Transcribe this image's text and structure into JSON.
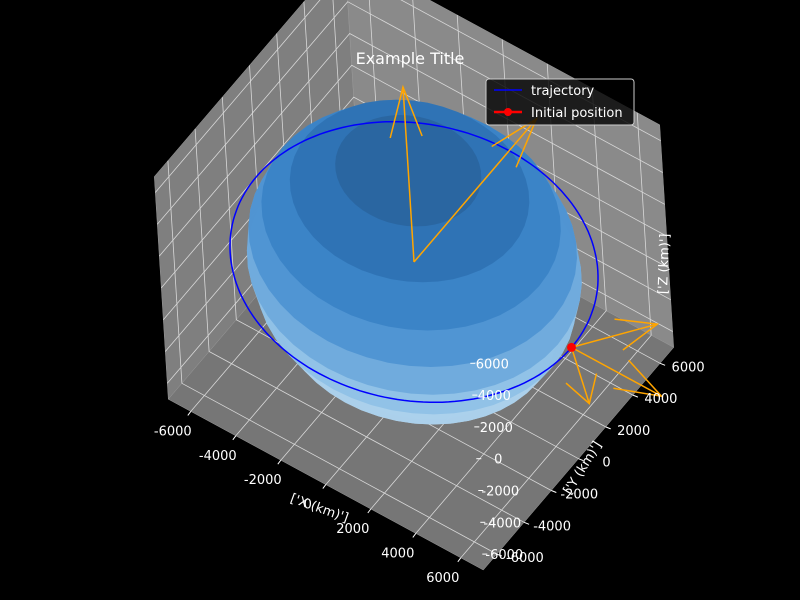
{
  "chart_data": {
    "type": "line",
    "projection": "3d",
    "title": "Example Title",
    "xlabel": "['X (km)']",
    "ylabel": "['Y (km)']",
    "zlabel": "['Z (km)']",
    "xlim": [
      -7000,
      7000
    ],
    "ylim": [
      -7000,
      7000
    ],
    "zlim": [
      -7000,
      7000
    ],
    "x_ticks": [
      "-6000",
      "-4000",
      "-2000",
      "0",
      "2000",
      "4000",
      "6000"
    ],
    "y_ticks": [
      "-6000",
      "-4000",
      "-2000",
      "0",
      "2000",
      "4000",
      "6000"
    ],
    "z_ticks": [
      "-6000",
      "-4000",
      "-2000",
      "0",
      "2000",
      "4000",
      "6000"
    ],
    "grid": true,
    "legend_position": "top-right",
    "legend": [
      {
        "label": "trajectory",
        "color": "#0000ff",
        "marker": "none"
      },
      {
        "label": "Initial position",
        "color": "#ff0000",
        "marker": "circle"
      }
    ],
    "series": [
      {
        "name": "trajectory",
        "kind": "orbit-circle",
        "plane": "xy",
        "radius_km": 7000,
        "z_km": 0,
        "color": "#0000ff"
      }
    ],
    "initial_position": {
      "x": 7000,
      "y": 0,
      "z": 0,
      "color": "#ff0000"
    },
    "earth": {
      "radius_km": 6378,
      "color": "#3a8fd8"
    },
    "vectors": [
      {
        "from": [
          0,
          0,
          0
        ],
        "to": [
          0,
          0,
          11000
        ],
        "color": "#ffa500"
      },
      {
        "from": [
          0,
          0,
          0
        ],
        "to": [
          0,
          9000,
          0
        ],
        "color": "#ffa500"
      },
      {
        "from": [
          7000,
          0,
          0
        ],
        "to": [
          11000,
          0,
          0
        ],
        "color": "#ffa500"
      },
      {
        "from": [
          7000,
          0,
          0
        ],
        "to": [
          9000,
          3000,
          0
        ],
        "color": "#ffa500"
      },
      {
        "from": [
          7000,
          0,
          0
        ],
        "to": [
          9000,
          -2000,
          0
        ],
        "color": "#ffa500"
      }
    ],
    "pane_color": "#7f7f7f",
    "background": "#000000"
  }
}
